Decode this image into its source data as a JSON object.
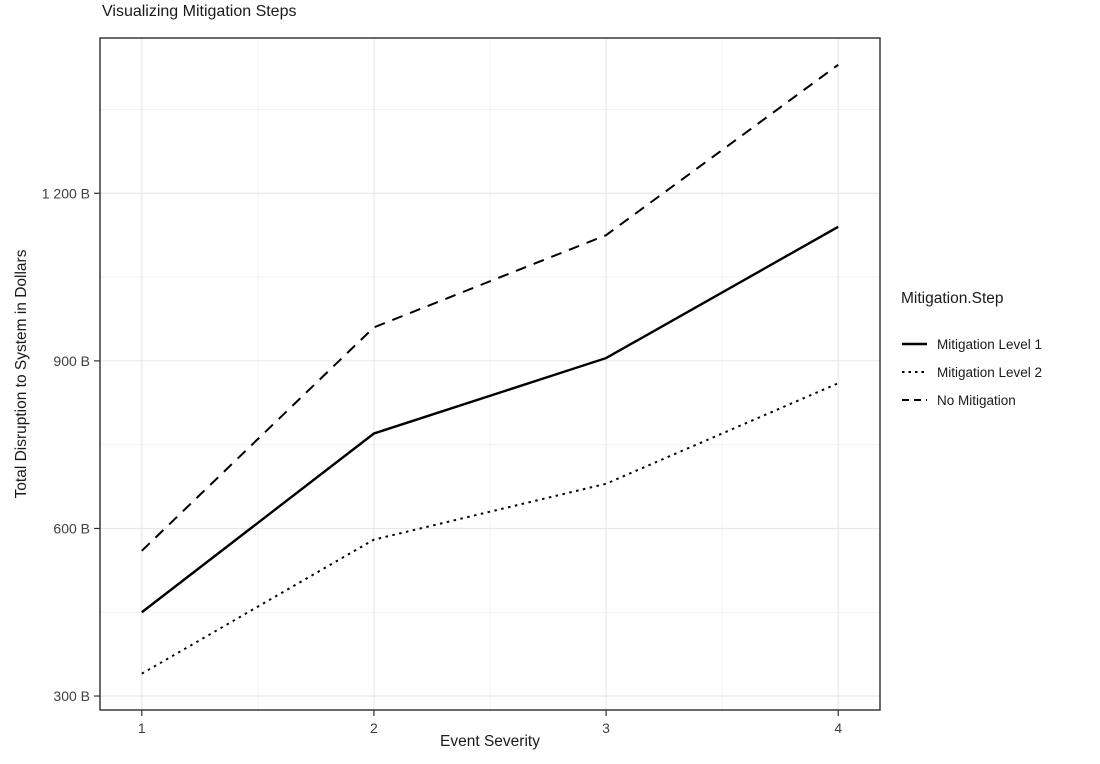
{
  "chart_data": {
    "type": "line",
    "title": "Visualizing Mitigation Steps",
    "xlabel": "Event Severity",
    "ylabel": "Total Disruption to System in Dollars",
    "x": [
      1,
      2,
      3,
      4
    ],
    "series": [
      {
        "name": "Mitigation Level 1",
        "linetype": "solid",
        "values": [
          450,
          770,
          905,
          1140
        ]
      },
      {
        "name": "Mitigation Level 2",
        "linetype": "dotted",
        "values": [
          340,
          580,
          680,
          860
        ]
      },
      {
        "name": "No Mitigation",
        "linetype": "dashed",
        "values": [
          560,
          960,
          1125,
          1430
        ]
      }
    ],
    "x_ticks": {
      "values": [
        1,
        2,
        3,
        4
      ],
      "labels": [
        "1",
        "2",
        "3",
        "4"
      ]
    },
    "y_ticks": {
      "values": [
        300,
        600,
        900,
        1200
      ],
      "labels": [
        "300 B",
        "600 B",
        "900 B",
        "1 200 B"
      ]
    },
    "x_minor": [
      1.5,
      2.5,
      3.5
    ],
    "y_minor": [
      450,
      750,
      1050,
      1350
    ],
    "xlim": [
      0.82,
      4.18
    ],
    "ylim": [
      275,
      1478
    ],
    "grid": true,
    "legend": {
      "title": "Mitigation.Step",
      "position": "right"
    },
    "colors": {
      "line": "#000000",
      "grid_major": "#e6e6e6",
      "grid_minor": "#f2f2f2",
      "panel_border": "#2b2b2b",
      "tick": "#333333",
      "tick_label": "#404040",
      "text": "#1a1a1a"
    }
  }
}
